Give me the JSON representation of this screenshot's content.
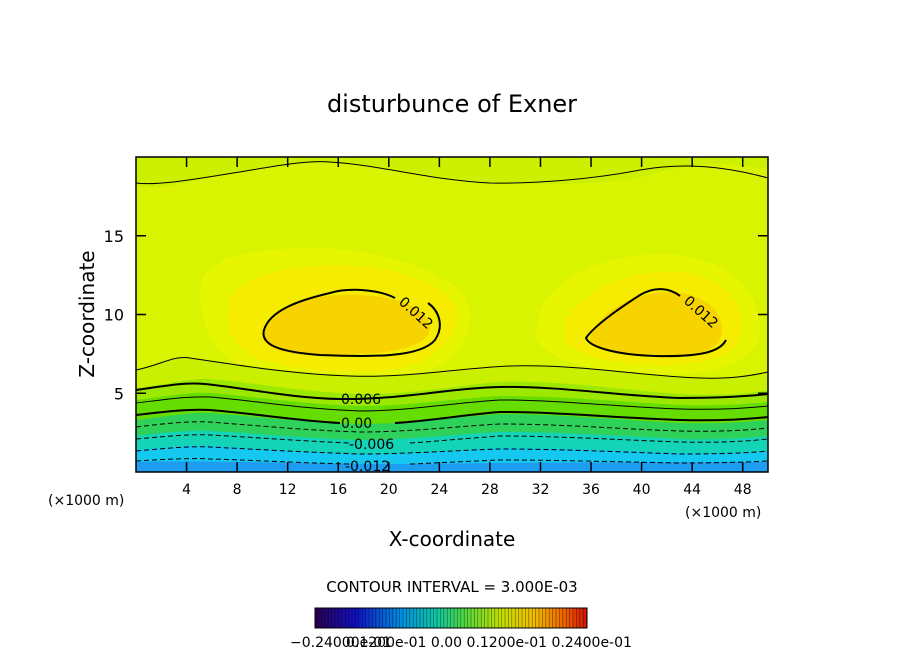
{
  "chart_data": {
    "type": "heatmap",
    "title": "disturbunce of Exner",
    "xlabel": "X-coordinate",
    "ylabel": "Z-coordinate",
    "x_unit": "(×1000 m)",
    "y_unit": "(×1000 m)",
    "xlim": [
      0,
      50
    ],
    "ylim": [
      0,
      20
    ],
    "x_ticks": [
      "4",
      "8",
      "12",
      "16",
      "20",
      "24",
      "28",
      "32",
      "36",
      "40",
      "44",
      "48"
    ],
    "y_ticks": [
      "5",
      "10",
      "15"
    ],
    "contour_labels": [
      "0.012",
      "0.012",
      "0.006",
      "0.00",
      "-0.006",
      "-0.012"
    ],
    "contour_interval_text": "CONTOUR INTERVAL = 3.000E-03",
    "colorbar_labels_text": "−0.24000e-01",
    "colorbar_labels_overlap": "0.1200e-01    0.00    0.1200e-01  0.2400e-01",
    "colorbar_range": [
      -0.024,
      0.024
    ],
    "grid": false,
    "field_colors": {
      "max": "#f7d400",
      "high": "#f5ec00",
      "upper": "#e4f500",
      "mid": "#b8f000",
      "zero": "#66dd00",
      "neg1": "#2ed25a",
      "neg2": "#14d4b8",
      "neg3": "#14c8f0",
      "min": "#1e9cf0"
    }
  }
}
